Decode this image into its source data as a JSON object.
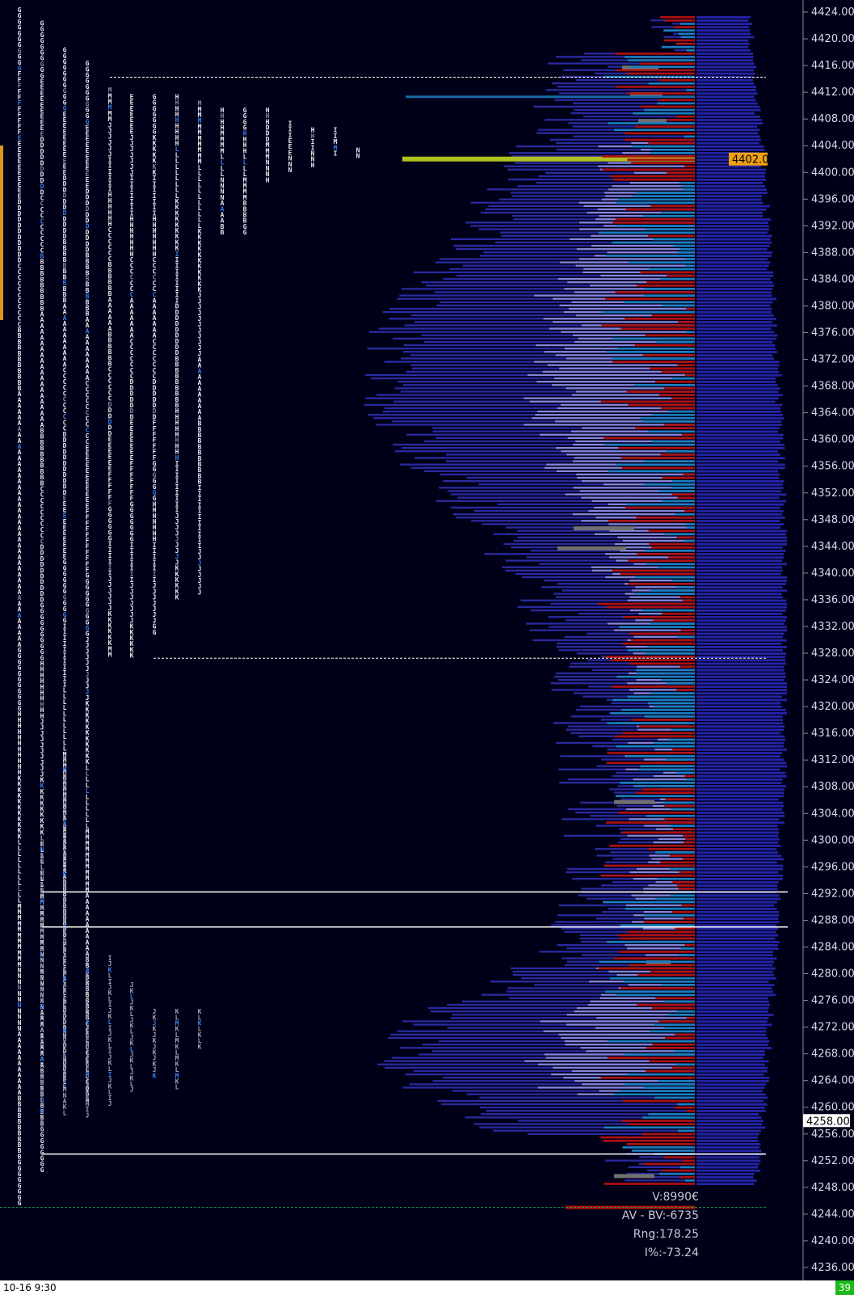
{
  "chart_data": {
    "type": "market-profile",
    "y_axis": {
      "ticks": [
        "4424.00",
        "4420.00",
        "4416.00",
        "4412.00",
        "4408.00",
        "4404.00",
        "4400.00",
        "4396.00",
        "4392.00",
        "4388.00",
        "4384.00",
        "4380.00",
        "4376.00",
        "4372.00",
        "4368.00",
        "4364.00",
        "4360.00",
        "4356.00",
        "4352.00",
        "4348.00",
        "4344.00",
        "4340.00",
        "4336.00",
        "4332.00",
        "4328.00",
        "4324.00",
        "4320.00",
        "4316.00",
        "4312.00",
        "4308.00",
        "4304.00",
        "4300.00",
        "4296.00",
        "4292.00",
        "4288.00",
        "4284.00",
        "4280.00",
        "4276.00",
        "4272.00",
        "4268.00",
        "4264.00",
        "4260.00",
        "4256.00",
        "4252.00",
        "4248.00",
        "4244.00",
        "4240.00",
        "4236.00"
      ],
      "range": [
        4236,
        4424
      ]
    },
    "price_markers": [
      {
        "value": 4402.0,
        "label": "4402.00",
        "color": "#f0a010"
      },
      {
        "value": 4258.0,
        "label": "4258.00",
        "color": "#ffffff"
      }
    ],
    "horizontal_lines": [
      4414.25,
      4327.25,
      4292.25,
      4287.0,
      4253.0,
      4245.0
    ],
    "tpo_letters": [
      "A",
      "B",
      "C",
      "D",
      "E",
      "F",
      "G",
      "H",
      "I",
      "J",
      "K",
      "L",
      "M",
      "N"
    ],
    "stats": {
      "volume": "V:8990€",
      "av_bv": "AV - BV:-6735",
      "range": "Rng:178.25",
      "imbalance": "I%:-73.24"
    },
    "colors": {
      "background": "#000018",
      "profile": "#2a2aa0",
      "value_area": "#8484d8",
      "sell": "#b01010",
      "buy": "#1a7fc0",
      "poc": "#b0c020",
      "grey": "#707070"
    }
  },
  "footer": {
    "timestamp": "10-16  9:30",
    "badge": "39"
  }
}
